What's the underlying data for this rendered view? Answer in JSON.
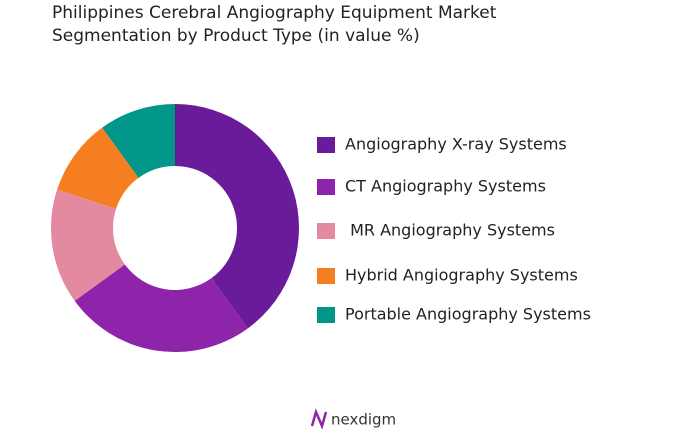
{
  "chart_data": {
    "type": "donut",
    "title": "Philippines Cerebral Angiography Equipment Market Segmentation by Product Type (in value %)",
    "categories": [
      "Angiography X-ray Systems",
      "CT Angiography Systems",
      " MR Angiography Systems",
      "Hybrid Angiography Systems",
      "Portable Angiography Systems"
    ],
    "values": [
      40,
      25,
      15,
      10,
      10
    ],
    "colors": [
      "#6a1b9a",
      "#8e24aa",
      "#e38aa0",
      "#f57f20",
      "#009688"
    ],
    "legend": "right"
  },
  "brand": "nexdigm"
}
